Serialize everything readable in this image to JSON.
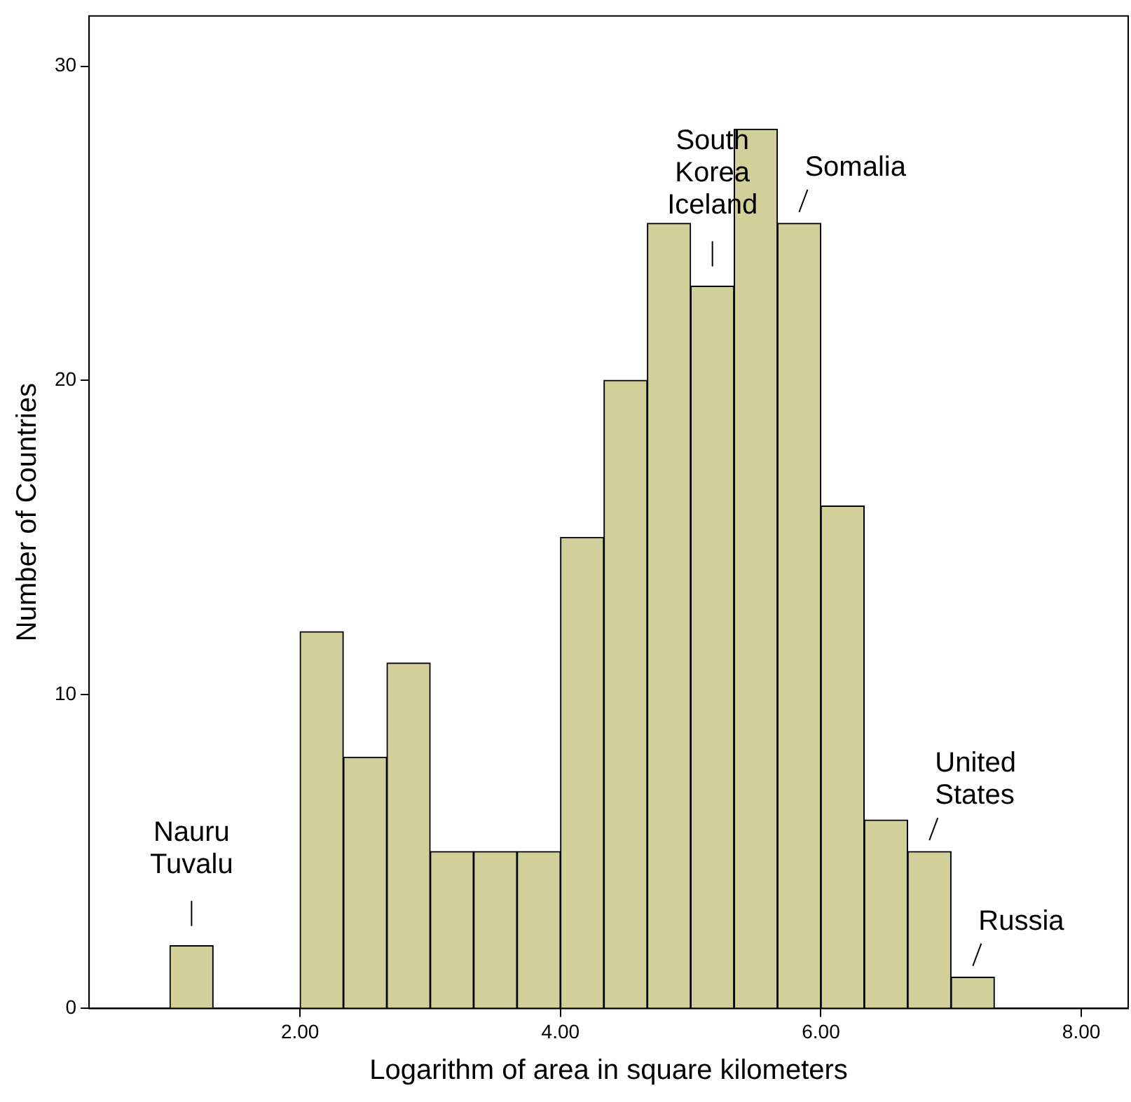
{
  "chart_data": {
    "type": "histogram",
    "xlabel": "Logarithm of area in square kilometers",
    "ylabel": "Number of Countries",
    "bins": [
      1,
      1.333,
      1.667,
      2,
      2.333,
      2.667,
      3,
      3.333,
      3.667,
      4,
      4.333,
      4.667,
      5,
      5.333,
      5.667,
      6,
      6.333,
      6.667,
      7,
      7.333
    ],
    "values": [
      2,
      0,
      0,
      12,
      8,
      11,
      5,
      5,
      5,
      15,
      20,
      25,
      23,
      28,
      25,
      16,
      6,
      5,
      1
    ],
    "color": "#d3cf9a",
    "xlim": [
      0.38,
      8.36
    ],
    "xticks": [
      {
        "value": 2,
        "label": "2.00"
      },
      {
        "value": 4,
        "label": "4.00"
      },
      {
        "value": 6,
        "label": "6.00"
      },
      {
        "value": 8,
        "label": "8.00"
      }
    ],
    "ylim": [
      0,
      31.6
    ],
    "yticks": [
      0,
      10,
      20,
      30
    ],
    "grid": false,
    "legend": false,
    "annotations": [
      {
        "text": "Nauru\nTuvalu",
        "x": 1.167,
        "y": 2
      },
      {
        "text": "South\nKorea\nIceland",
        "x": 5.167,
        "y": 23
      },
      {
        "text": "Somalia",
        "x": 5.833,
        "y": 25
      },
      {
        "text": "United\nStates",
        "x": 6.833,
        "y": 5
      },
      {
        "text": "Russia",
        "x": 7.167,
        "y": 1
      }
    ]
  }
}
